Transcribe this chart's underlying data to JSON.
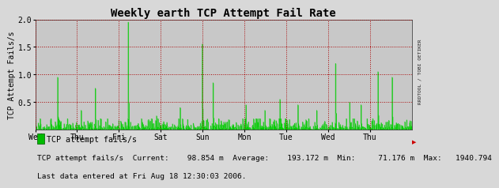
{
  "title": "Weekly earth TCP Attempt Fail Rate",
  "ylabel": "TCP Attempt Fails/s",
  "xlabel_ticks": [
    "Wed",
    "Thu",
    "Fri",
    "Sat",
    "Sun",
    "Mon",
    "Tue",
    "Wed",
    "Thu"
  ],
  "ylim": [
    0.0,
    2.0
  ],
  "yticks": [
    0.5,
    1.0,
    1.5,
    2.0
  ],
  "background_color": "#d8d8d8",
  "plot_bg_color": "#c8c8c8",
  "grid_color": "#aa0000",
  "line_color": "#00cc00",
  "legend_box_color": "#00bb00",
  "title_fontsize": 10,
  "tick_fontsize": 7,
  "label_fontsize": 7,
  "legend_text": "TCP attempt fails/s",
  "stats_text": "TCP attempt fails/s  Current:    98.854 m  Average:    193.172 m  Min:     71.176 m  Max:   1940.794",
  "lastdata_text": "Last data entered at Fri Aug 18 12:30:03 2006.",
  "rrdtool_text": "RRDTOOL / TOBI OETIKER",
  "n_points": 800,
  "noise_scale": 0.06,
  "spike_positions": [
    48,
    98,
    128,
    198,
    258,
    308,
    355,
    378,
    448,
    488,
    520,
    558,
    598,
    638,
    668,
    692,
    728,
    758
  ],
  "spike_heights": [
    0.95,
    0.35,
    0.75,
    1.95,
    0.25,
    0.4,
    1.55,
    0.85,
    0.45,
    0.35,
    0.55,
    0.45,
    0.35,
    1.2,
    0.5,
    0.45,
    1.05,
    0.95
  ]
}
